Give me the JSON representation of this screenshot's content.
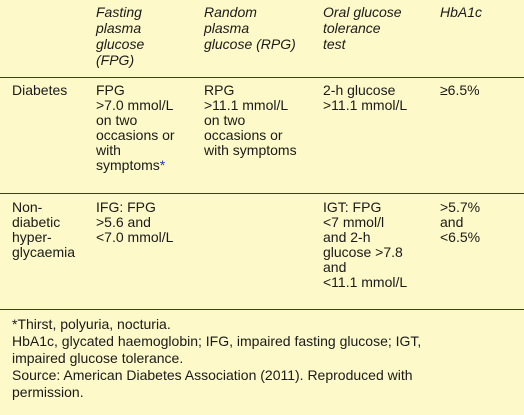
{
  "headers": {
    "fpg": "Fasting\nplasma\nglucose\n(FPG)",
    "rpg": "Random\nplasma\nglucose (RPG)",
    "ogtt": "Oral glucose\ntolerance\ntest",
    "hba1c": "HbA1c"
  },
  "rows": [
    {
      "label": "Diabetes",
      "fpg": "FPG\n>7.0 mmol/L\non two\noccasions or\nwith\nsymptoms",
      "fpg_marker": "*",
      "rpg": "RPG\n>11.1 mmol/L\non two\noccasions or\nwith symptoms",
      "ogtt": "2-h glucose\n>11.1 mmol/L",
      "hba1c": "≥6.5%"
    },
    {
      "label": "Non-\ndiabetic\nhyper-\nglycaemia",
      "fpg": "IFG: FPG\n>5.6 and\n<7.0 mmol/L",
      "rpg": "",
      "ogtt": "IGT: FPG\n<7 mmol/l\nand 2-h\nglucose >7.8\nand\n<11.1 mmol/L",
      "hba1c": ">5.7%\nand\n<6.5%"
    }
  ],
  "footnotes": {
    "symptoms": "*Thirst, polyuria, nocturia.",
    "abbreviations": "HbA1c, glycated haemoglobin; IFG, impaired fasting glucose; IGT,\nimpaired glucose tolerance.",
    "source": "Source: American Diabetes Association (2011). Reproduced with\npermission."
  },
  "colors": {
    "background": "#fdf9c8",
    "rule": "#3b3b3b",
    "footnote_marker": "#1f35c9"
  }
}
